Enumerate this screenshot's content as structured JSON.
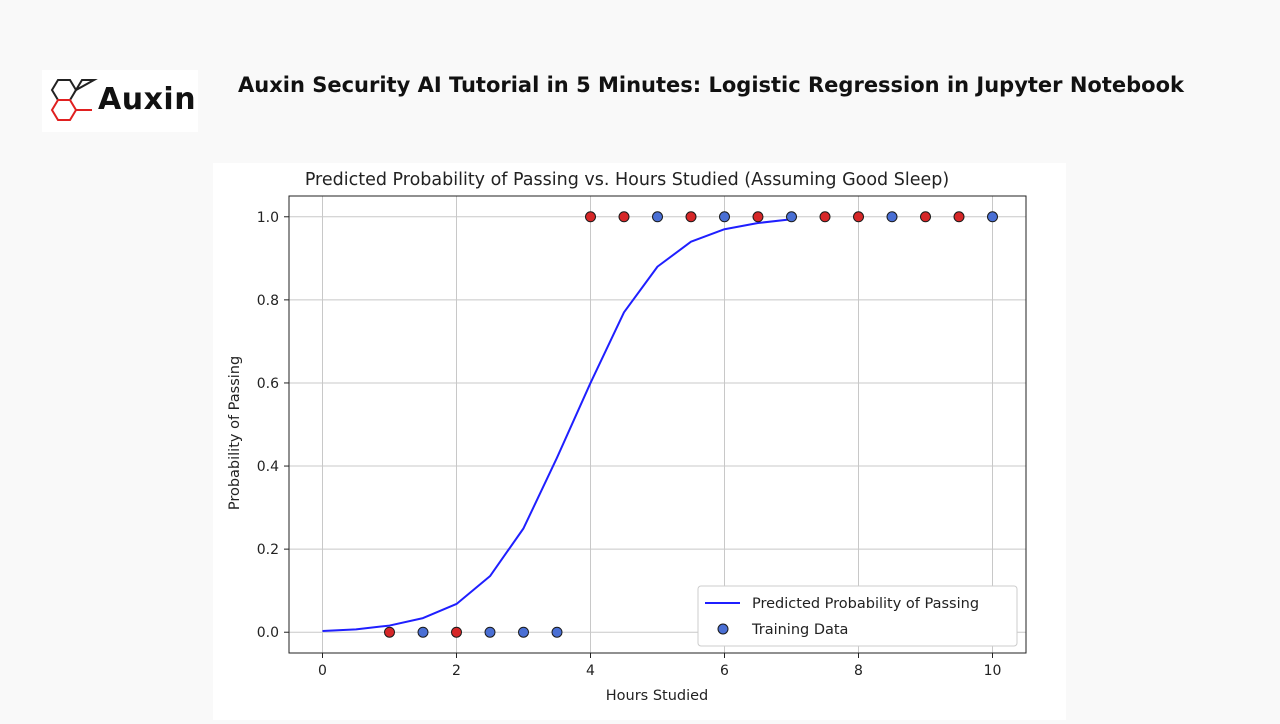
{
  "header": {
    "brand_name": "Auxin",
    "title": "Auxin Security AI Tutorial in 5 Minutes: Logistic Regression in Jupyter Notebook"
  },
  "colors": {
    "logo_red": "#e02020",
    "logo_dark": "#222222",
    "curve": "#1f1fff",
    "point_fail": "#d62728",
    "point_pass": "#4a6fd4",
    "grid": "#c8c8c8"
  },
  "chart_data": {
    "type": "scatter",
    "title": "Predicted Probability of Passing vs. Hours Studied (Assuming Good Sleep)",
    "xlabel": "Hours Studied",
    "ylabel": "Probability of Passing",
    "xlim": [
      -0.5,
      10.5
    ],
    "ylim": [
      -0.05,
      1.05
    ],
    "xticks": [
      0,
      2,
      4,
      6,
      8,
      10
    ],
    "xtick_labels": [
      "0",
      "2",
      "4",
      "6",
      "8",
      "10"
    ],
    "yticks": [
      0.0,
      0.2,
      0.4,
      0.6,
      0.8,
      1.0
    ],
    "ytick_labels": [
      "0.0",
      "0.2",
      "0.4",
      "0.6",
      "0.8",
      "1.0"
    ],
    "grid": true,
    "legend_position": "bottom-right",
    "series": [
      {
        "name": "Predicted Probability of Passing",
        "kind": "line",
        "color": "#1f1fff",
        "x": [
          0,
          0.5,
          1,
          1.5,
          2,
          2.5,
          3,
          3.5,
          4,
          4.5,
          5,
          5.5,
          6,
          6.5,
          7
        ],
        "y": [
          0.003,
          0.007,
          0.016,
          0.034,
          0.068,
          0.135,
          0.25,
          0.42,
          0.6,
          0.77,
          0.88,
          0.94,
          0.97,
          0.985,
          0.994
        ]
      },
      {
        "name": "Training Data",
        "kind": "scatter",
        "points": [
          {
            "x": 1.0,
            "y": 0,
            "group": "fail"
          },
          {
            "x": 1.5,
            "y": 0,
            "group": "pass"
          },
          {
            "x": 2.0,
            "y": 0,
            "group": "fail"
          },
          {
            "x": 2.5,
            "y": 0,
            "group": "pass"
          },
          {
            "x": 3.0,
            "y": 0,
            "group": "pass"
          },
          {
            "x": 3.5,
            "y": 0,
            "group": "pass"
          },
          {
            "x": 4.0,
            "y": 1,
            "group": "fail"
          },
          {
            "x": 4.5,
            "y": 1,
            "group": "fail"
          },
          {
            "x": 5.0,
            "y": 1,
            "group": "pass"
          },
          {
            "x": 5.5,
            "y": 1,
            "group": "fail"
          },
          {
            "x": 6.0,
            "y": 1,
            "group": "pass"
          },
          {
            "x": 6.5,
            "y": 1,
            "group": "fail"
          },
          {
            "x": 7.0,
            "y": 1,
            "group": "pass"
          },
          {
            "x": 7.5,
            "y": 1,
            "group": "fail"
          },
          {
            "x": 8.0,
            "y": 1,
            "group": "fail"
          },
          {
            "x": 8.5,
            "y": 1,
            "group": "pass"
          },
          {
            "x": 9.0,
            "y": 1,
            "group": "fail"
          },
          {
            "x": 9.5,
            "y": 1,
            "group": "fail"
          },
          {
            "x": 10.0,
            "y": 1,
            "group": "pass"
          }
        ]
      }
    ]
  }
}
